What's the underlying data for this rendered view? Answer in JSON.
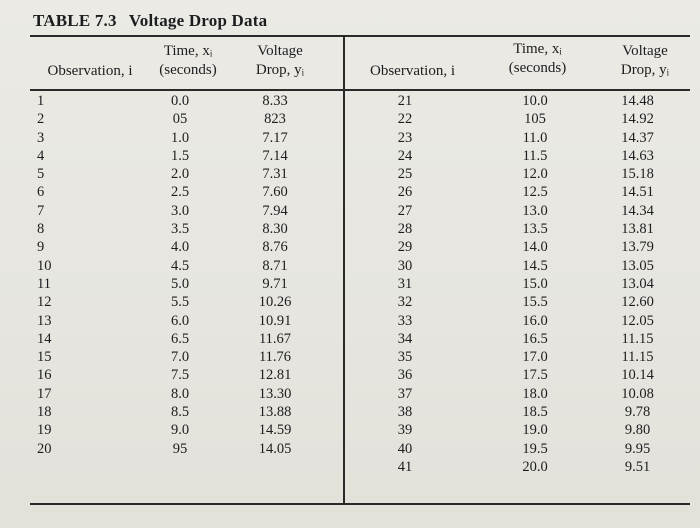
{
  "table": {
    "number": "TABLE 7.3",
    "caption": "Voltage Drop Data",
    "headers": {
      "observation": "Observation, i",
      "time_line1": "Time, xᵢ",
      "time_line2": "(seconds)",
      "drop_line1": "Voltage",
      "drop_line2": "Drop, yᵢ"
    },
    "left_rows": [
      {
        "obs": "1",
        "time": "0.0",
        "drop": "8.33"
      },
      {
        "obs": "2",
        "time": "05",
        "drop": "823"
      },
      {
        "obs": "3",
        "time": "1.0",
        "drop": "7.17"
      },
      {
        "obs": "4",
        "time": "1.5",
        "drop": "7.14"
      },
      {
        "obs": "5",
        "time": "2.0",
        "drop": "7.31"
      },
      {
        "obs": "6",
        "time": "2.5",
        "drop": "7.60"
      },
      {
        "obs": "7",
        "time": "3.0",
        "drop": "7.94"
      },
      {
        "obs": "8",
        "time": "3.5",
        "drop": "8.30"
      },
      {
        "obs": "9",
        "time": "4.0",
        "drop": "8.76"
      },
      {
        "obs": "10",
        "time": "4.5",
        "drop": "8.71"
      },
      {
        "obs": "11",
        "time": "5.0",
        "drop": "9.71"
      },
      {
        "obs": "12",
        "time": "5.5",
        "drop": "10.26"
      },
      {
        "obs": "13",
        "time": "6.0",
        "drop": "10.91"
      },
      {
        "obs": "14",
        "time": "6.5",
        "drop": "11.67"
      },
      {
        "obs": "15",
        "time": "7.0",
        "drop": "11.76"
      },
      {
        "obs": "16",
        "time": "7.5",
        "drop": "12.81"
      },
      {
        "obs": "17",
        "time": "8.0",
        "drop": "13.30"
      },
      {
        "obs": "18",
        "time": "8.5",
        "drop": "13.88"
      },
      {
        "obs": "19",
        "time": "9.0",
        "drop": "14.59"
      },
      {
        "obs": "20",
        "time": "95",
        "drop": "14.05"
      }
    ],
    "right_rows": [
      {
        "obs": "21",
        "time": "10.0",
        "drop": "14.48"
      },
      {
        "obs": "22",
        "time": "105",
        "drop": "14.92"
      },
      {
        "obs": "23",
        "time": "11.0",
        "drop": "14.37"
      },
      {
        "obs": "24",
        "time": "11.5",
        "drop": "14.63"
      },
      {
        "obs": "25",
        "time": "12.0",
        "drop": "15.18"
      },
      {
        "obs": "26",
        "time": "12.5",
        "drop": "14.51"
      },
      {
        "obs": "27",
        "time": "13.0",
        "drop": "14.34"
      },
      {
        "obs": "28",
        "time": "13.5",
        "drop": "13.81"
      },
      {
        "obs": "29",
        "time": "14.0",
        "drop": "13.79"
      },
      {
        "obs": "30",
        "time": "14.5",
        "drop": "13.05"
      },
      {
        "obs": "31",
        "time": "15.0",
        "drop": "13.04"
      },
      {
        "obs": "32",
        "time": "15.5",
        "drop": "12.60"
      },
      {
        "obs": "33",
        "time": "16.0",
        "drop": "12.05"
      },
      {
        "obs": "34",
        "time": "16.5",
        "drop": "11.15"
      },
      {
        "obs": "35",
        "time": "17.0",
        "drop": "11.15"
      },
      {
        "obs": "36",
        "time": "17.5",
        "drop": "10.14"
      },
      {
        "obs": "37",
        "time": "18.0",
        "drop": "10.08"
      },
      {
        "obs": "38",
        "time": "18.5",
        "drop": "9.78"
      },
      {
        "obs": "39",
        "time": "19.0",
        "drop": "9.80"
      },
      {
        "obs": "40",
        "time": "19.5",
        "drop": "9.95"
      },
      {
        "obs": "41",
        "time": "20.0",
        "drop": "9.51"
      }
    ]
  }
}
